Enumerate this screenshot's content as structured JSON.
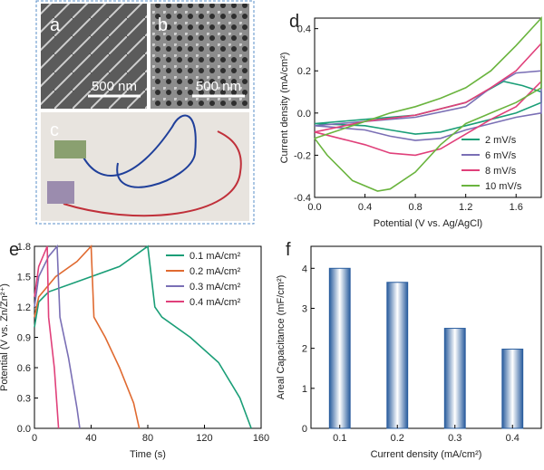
{
  "images": [
    {
      "label": "a",
      "scale_bar": "500 nm"
    },
    {
      "label": "b",
      "scale_bar": "500 nm"
    },
    {
      "label": "c"
    }
  ],
  "chart_data": [
    {
      "type": "line",
      "panel": "d",
      "xlabel": "Potential (V vs. Ag/AgCl)",
      "ylabel": "Current density (mA/cm²)",
      "xlim": [
        0,
        1.8
      ],
      "ylim": [
        -0.4,
        0.45
      ],
      "xticks": [
        {
          "value": 0,
          "label": "0.0"
        },
        0.4,
        0.8,
        1.2,
        1.6
      ],
      "yticks": [
        -0.4,
        -0.2,
        {
          "value": 0,
          "label": "0.0"
        },
        0.2,
        0.4
      ],
      "legend": "lower right",
      "series": [
        {
          "name": "2 mV/s",
          "color": "#1a9e77",
          "x": [
            0,
            0.4,
            0.8,
            1.2,
            1.5,
            1.65,
            1.8,
            1.8,
            1.6,
            1.4,
            1.2,
            1.0,
            0.8,
            0.6,
            0.4,
            0
          ],
          "values": [
            -0.05,
            -0.03,
            -0.01,
            0.05,
            0.15,
            0.13,
            0.1,
            0.05,
            0.0,
            -0.03,
            -0.06,
            -0.09,
            -0.1,
            -0.08,
            -0.06,
            -0.05
          ]
        },
        {
          "name": "6 mV/s",
          "color": "#7a6fb5",
          "x": [
            0,
            0.4,
            0.8,
            1.2,
            1.4,
            1.6,
            1.8,
            1.8,
            1.6,
            1.4,
            1.2,
            1.0,
            0.8,
            0.6,
            0.4,
            0.2,
            0
          ],
          "values": [
            -0.06,
            -0.04,
            -0.02,
            0.03,
            0.12,
            0.19,
            0.2,
            0.0,
            -0.02,
            -0.05,
            -0.08,
            -0.12,
            -0.13,
            -0.11,
            -0.08,
            -0.07,
            -0.06
          ]
        },
        {
          "name": "8 mV/s",
          "color": "#e0407a",
          "x": [
            0,
            0.4,
            0.8,
            1.2,
            1.4,
            1.6,
            1.8,
            1.8,
            1.6,
            1.4,
            1.2,
            1.0,
            0.8,
            0.6,
            0.4,
            0.2,
            0
          ],
          "values": [
            -0.09,
            -0.04,
            -0.01,
            0.05,
            0.12,
            0.2,
            0.33,
            0.15,
            0.03,
            -0.03,
            -0.1,
            -0.17,
            -0.2,
            -0.19,
            -0.15,
            -0.12,
            -0.09
          ]
        },
        {
          "name": "10 mV/s",
          "color": "#6ab43e",
          "x": [
            0,
            0.2,
            0.4,
            0.6,
            0.8,
            1.0,
            1.2,
            1.4,
            1.6,
            1.8,
            1.8,
            1.6,
            1.4,
            1.2,
            1.0,
            0.8,
            0.6,
            0.5,
            0.3,
            0.1,
            0
          ],
          "values": [
            -0.12,
            -0.08,
            -0.04,
            0,
            0.03,
            0.07,
            0.12,
            0.2,
            0.32,
            0.45,
            0.12,
            0.05,
            0.0,
            -0.05,
            -0.15,
            -0.28,
            -0.36,
            -0.37,
            -0.32,
            -0.2,
            -0.12
          ]
        }
      ]
    },
    {
      "type": "line",
      "panel": "e",
      "xlabel": "Time (s)",
      "ylabel": "Potential (V vs. Zn/Zn²⁺)",
      "xlim": [
        0,
        160
      ],
      "ylim": [
        0,
        1.8
      ],
      "xticks": [
        0,
        40,
        80,
        120,
        160
      ],
      "yticks": [
        {
          "value": 0,
          "label": "0.0"
        },
        0.3,
        0.6,
        0.9,
        1.2,
        1.5,
        1.8
      ],
      "legend": "upper right",
      "series": [
        {
          "name": "0.1 mA/cm²",
          "color": "#1a9e77",
          "x": [
            0,
            3,
            10,
            30,
            60,
            80,
            85,
            90,
            110,
            130,
            145,
            153
          ],
          "values": [
            1.0,
            1.25,
            1.35,
            1.45,
            1.6,
            1.8,
            1.2,
            1.1,
            0.9,
            0.65,
            0.3,
            0
          ]
        },
        {
          "name": "0.2 mA/cm²",
          "color": "#e06a30",
          "x": [
            0,
            3,
            15,
            30,
            40,
            42,
            50,
            60,
            70,
            74
          ],
          "values": [
            1.1,
            1.3,
            1.5,
            1.65,
            1.8,
            1.1,
            0.9,
            0.6,
            0.25,
            0
          ]
        },
        {
          "name": "0.3 mA/cm²",
          "color": "#7a6fb5",
          "x": [
            0,
            3,
            10,
            16,
            18,
            24,
            30,
            32
          ],
          "values": [
            1.2,
            1.5,
            1.7,
            1.8,
            1.1,
            0.7,
            0.2,
            0
          ]
        },
        {
          "name": "0.4 mA/cm²",
          "color": "#e0407a",
          "x": [
            0,
            3,
            9,
            10,
            14,
            17
          ],
          "values": [
            1.3,
            1.6,
            1.8,
            1.1,
            0.6,
            0
          ]
        }
      ]
    },
    {
      "type": "bar",
      "panel": "f",
      "xlabel": "Current density (mA/cm²)",
      "ylabel": "Areal Capacitance (mF/cm²)",
      "categories": [
        "0.1",
        "0.2",
        "0.3",
        "0.4"
      ],
      "values": [
        4.0,
        3.65,
        2.5,
        1.98
      ],
      "ylim": [
        0,
        4.55
      ],
      "yticks": [
        0,
        1,
        2,
        3,
        4
      ]
    }
  ]
}
